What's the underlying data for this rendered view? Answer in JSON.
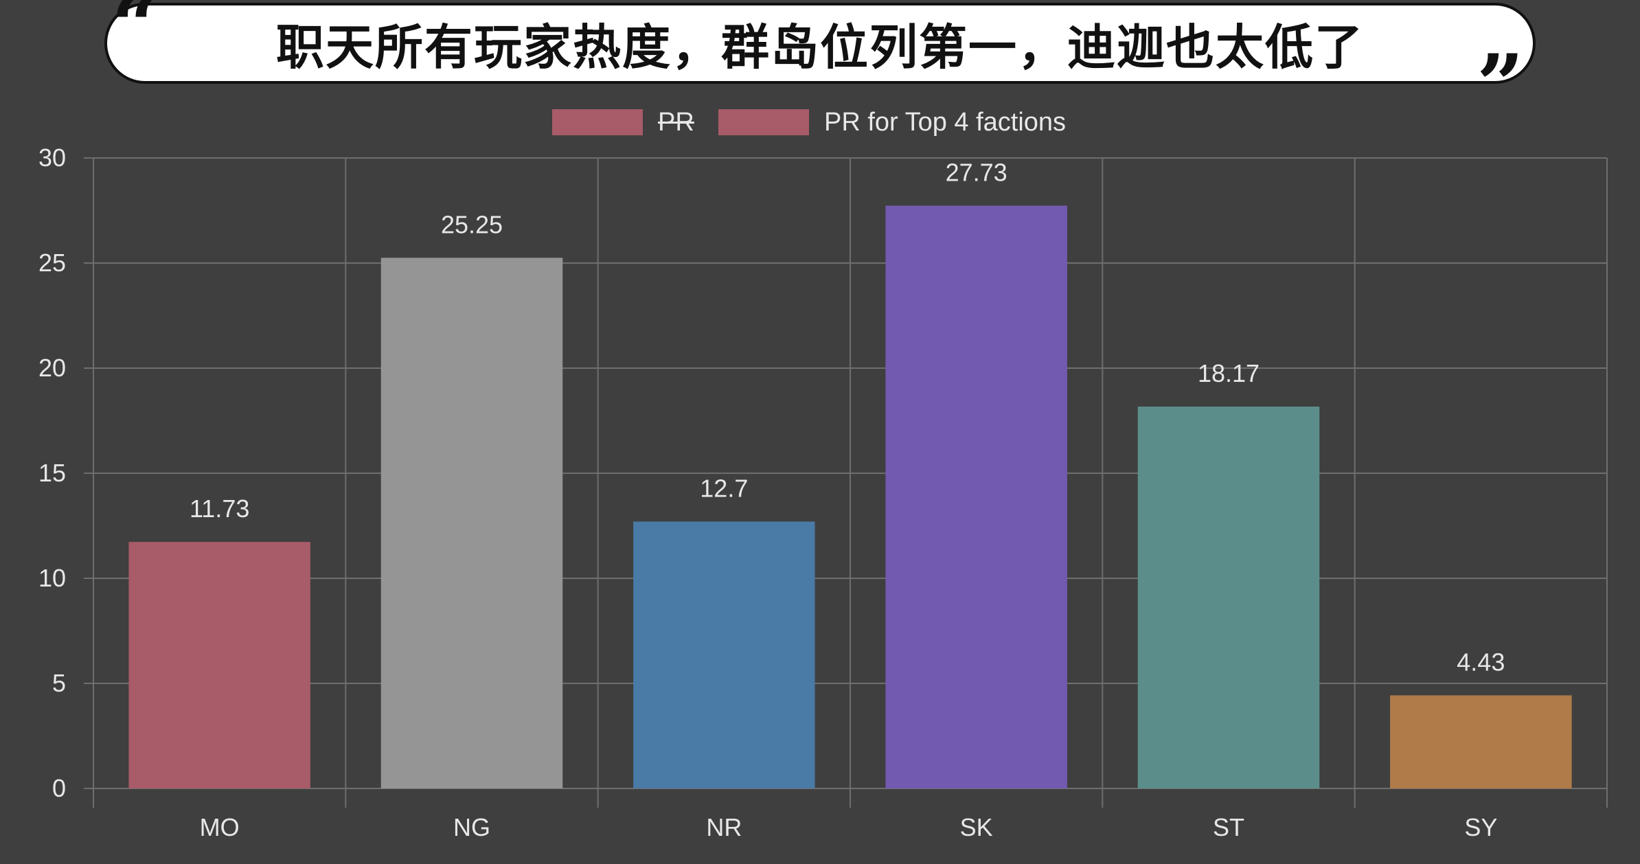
{
  "banner": {
    "text": "职天所有玩家热度，群岛位列第一，迪迦也太低了",
    "open_quote": "“",
    "close_quote": "”"
  },
  "legend": [
    {
      "label": "PR",
      "color": "#a85b68",
      "hidden": true
    },
    {
      "label": "PR for Top 4 factions",
      "color": "#a85b68",
      "hidden": false
    }
  ],
  "chart_data": {
    "type": "bar",
    "categories": [
      "MO",
      "NG",
      "NR",
      "SK",
      "ST",
      "SY"
    ],
    "values": [
      11.73,
      25.25,
      12.7,
      27.73,
      18.17,
      4.43
    ],
    "value_labels": [
      "11.73",
      "25.25",
      "12.7",
      "27.73",
      "18.17",
      "4.43"
    ],
    "colors": [
      "#a85b68",
      "#959595",
      "#4a7aa6",
      "#725ab0",
      "#5b8e8b",
      "#b07b49"
    ],
    "y_ticks": [
      "0",
      "5",
      "10",
      "15",
      "20",
      "25",
      "30"
    ],
    "ylim": [
      0,
      30
    ],
    "grid": true,
    "legend_position": "top"
  }
}
